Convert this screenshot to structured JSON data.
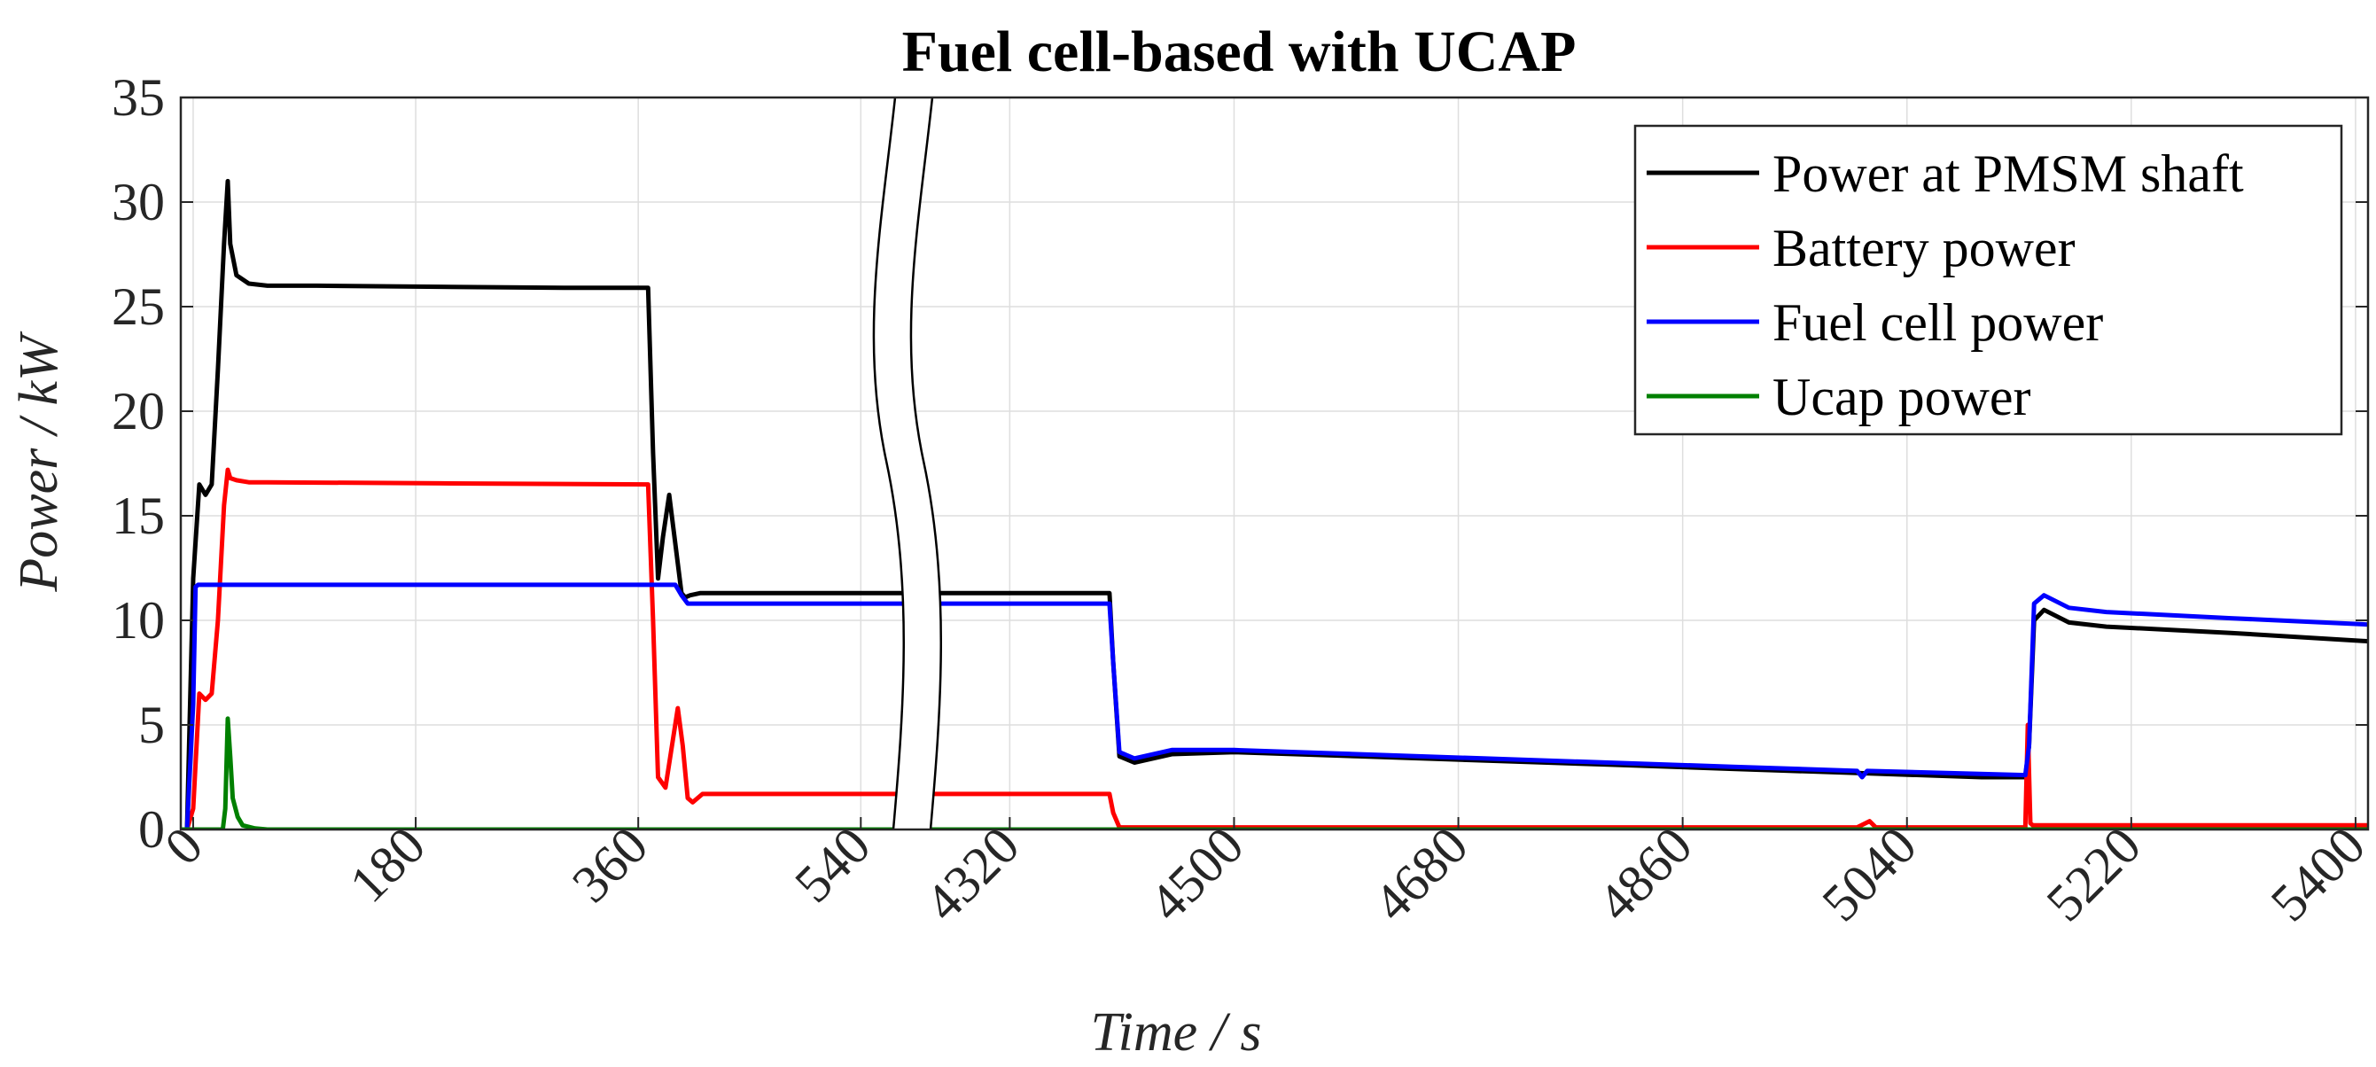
{
  "chart_data": {
    "type": "line",
    "title": "Fuel cell-based with UCAP",
    "xlabel": "Time / s",
    "ylabel": "Power / kW",
    "ylim": [
      0,
      35
    ],
    "yticks": [
      0,
      5,
      10,
      15,
      20,
      25,
      30,
      35
    ],
    "grid": true,
    "axis_break": {
      "after": 540,
      "resume": 4260
    },
    "segments": [
      {
        "xlim": [
          -10,
          600
        ],
        "xticks": [
          "0",
          "180",
          "360",
          "540"
        ],
        "tick_values": [
          0,
          180,
          360,
          540
        ]
      },
      {
        "xlim": [
          4260,
          5410
        ],
        "xticks": [
          "4320",
          "4500",
          "4680",
          "4860",
          "5040",
          "5220",
          "5400"
        ],
        "tick_values": [
          4320,
          4500,
          4680,
          4860,
          5040,
          5220,
          5400
        ]
      }
    ],
    "legend_position": "top-right",
    "series": [
      {
        "name": "Power at PMSM shaft",
        "color": "#000000",
        "x": [
          -10,
          -5,
          0,
          5,
          10,
          15,
          20,
          25,
          28,
          30,
          35,
          45,
          60,
          100,
          200,
          300,
          368,
          372,
          376,
          380,
          385,
          395,
          398,
          402,
          410,
          430,
          600,
          4260,
          4400,
          4403,
          4408,
          4420,
          4450,
          4500,
          4600,
          4700,
          4800,
          4900,
          5000,
          5100,
          5135,
          5138,
          5142,
          5150,
          5170,
          5200,
          5300,
          5410
        ],
        "values": [
          0,
          0,
          12,
          16.5,
          16,
          16.5,
          22,
          28,
          31,
          28,
          26.5,
          26.1,
          26,
          26,
          25.95,
          25.9,
          25.9,
          18,
          12,
          14,
          16,
          11.3,
          11.1,
          11.2,
          11.3,
          11.3,
          11.3,
          11.3,
          11.3,
          8,
          3.5,
          3.2,
          3.6,
          3.7,
          3.5,
          3.3,
          3.1,
          2.9,
          2.7,
          2.5,
          2.5,
          4,
          10,
          10.5,
          9.9,
          9.7,
          9.4,
          9.0
        ]
      },
      {
        "name": "Battery power",
        "color": "#ff0000",
        "x": [
          -10,
          -5,
          0,
          5,
          10,
          15,
          20,
          25,
          28,
          30,
          35,
          45,
          60,
          200,
          368,
          372,
          376,
          382,
          392,
          396,
          400,
          404,
          412,
          430,
          600,
          4260,
          4400,
          4403,
          4408,
          4500,
          5000,
          5010,
          5015,
          5020,
          5030,
          5135,
          5137,
          5139,
          5141,
          5143,
          5150,
          5300,
          5410
        ],
        "values": [
          0,
          0,
          1,
          6.5,
          6.2,
          6.5,
          10,
          15.5,
          17.2,
          16.8,
          16.7,
          16.6,
          16.6,
          16.55,
          16.5,
          10,
          2.5,
          2.0,
          5.8,
          4.0,
          1.5,
          1.3,
          1.7,
          1.7,
          1.7,
          1.7,
          1.7,
          0.8,
          0.1,
          0.1,
          0.1,
          0.4,
          0.1,
          0.1,
          0.1,
          0.1,
          5.0,
          0.3,
          0.2,
          0.2,
          0.2,
          0.2,
          0.2
        ]
      },
      {
        "name": "Fuel cell power",
        "color": "#0000ff",
        "x": [
          -10,
          -5,
          0,
          2,
          4,
          100,
          200,
          300,
          390,
          395,
          400,
          420,
          600,
          4260,
          4400,
          4403,
          4408,
          4420,
          4450,
          4500,
          4700,
          4900,
          5000,
          5004,
          5008,
          5135,
          5138,
          5142,
          5150,
          5170,
          5200,
          5300,
          5410
        ],
        "values": [
          0,
          0,
          6,
          11.6,
          11.7,
          11.7,
          11.7,
          11.7,
          11.7,
          11.2,
          10.8,
          10.8,
          10.8,
          10.8,
          10.8,
          8,
          3.7,
          3.4,
          3.8,
          3.8,
          3.4,
          3.0,
          2.8,
          2.5,
          2.8,
          2.6,
          4,
          10.8,
          11.2,
          10.6,
          10.4,
          10.1,
          9.8
        ]
      },
      {
        "name": "Ucap power",
        "color": "#008000",
        "x": [
          -10,
          -5,
          0,
          20,
          24,
          26,
          28,
          30,
          32,
          36,
          40,
          50,
          60,
          600,
          4260,
          5410
        ],
        "values": [
          0,
          0,
          0,
          0,
          0,
          1.0,
          5.3,
          3.5,
          1.5,
          0.6,
          0.2,
          0.05,
          0,
          0,
          0,
          0
        ]
      }
    ]
  }
}
